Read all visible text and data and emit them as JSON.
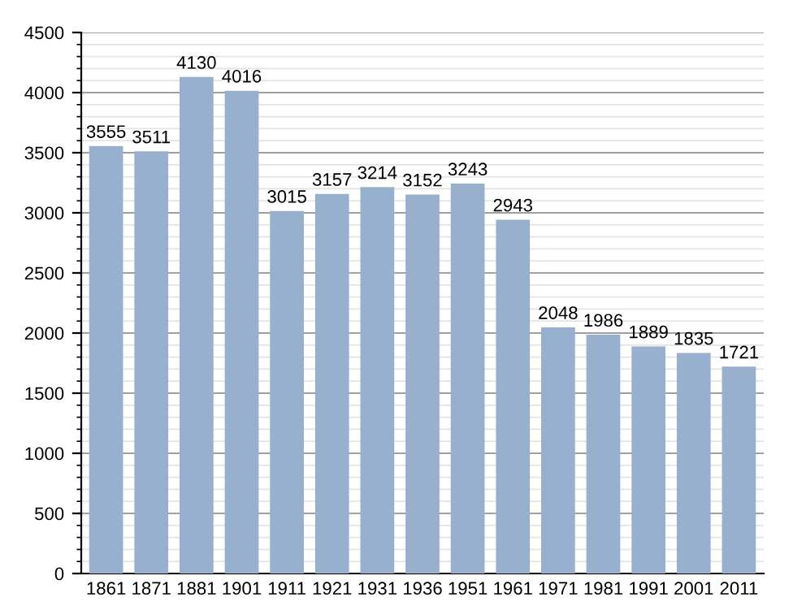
{
  "chart_data": {
    "type": "bar",
    "categories": [
      "1861",
      "1871",
      "1881",
      "1901",
      "1911",
      "1921",
      "1931",
      "1936",
      "1951",
      "1961",
      "1971",
      "1981",
      "1991",
      "2001",
      "2011"
    ],
    "values": [
      3555,
      3511,
      4130,
      4016,
      3015,
      3157,
      3214,
      3152,
      3243,
      2943,
      2048,
      1986,
      1889,
      1835,
      1721
    ],
    "color": "#97b0cd",
    "ylim": [
      0,
      4500
    ],
    "yticks": [
      0,
      500,
      1000,
      1500,
      2000,
      2500,
      3000,
      3500,
      4000,
      4500
    ],
    "grid": "y",
    "data_labels": true
  }
}
